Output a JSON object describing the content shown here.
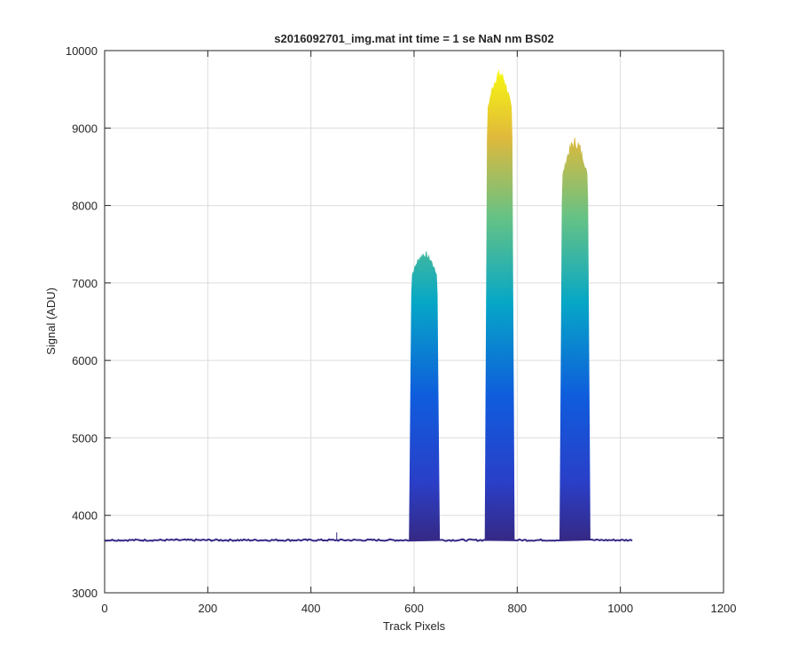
{
  "chart_data": {
    "type": "area",
    "title": "s2016092701_img.mat int time = 1 se  NaN nm BS02",
    "xlabel": "Track Pixels",
    "ylabel": "Signal (ADU)",
    "xlim": [
      0,
      1200
    ],
    "ylim": [
      3000,
      10000
    ],
    "xticks": [
      0,
      200,
      400,
      600,
      800,
      1000,
      1200
    ],
    "xtick_labels": [
      "0",
      "200",
      "400",
      "600",
      "800",
      "1000",
      "1200"
    ],
    "yticks": [
      3000,
      4000,
      5000,
      6000,
      7000,
      8000,
      9000,
      10000
    ],
    "ytick_labels": [
      "3000",
      "4000",
      "5000",
      "6000",
      "7000",
      "8000",
      "9000",
      "10000"
    ],
    "grid": true,
    "colormap": "parula",
    "colors": {
      "baseline": "#352a87",
      "low": "#0f5cdd",
      "mid": "#06a7c6",
      "high": "#66c285",
      "peak": "#f9fb0e"
    },
    "baseline": {
      "x_start": 0,
      "x_end": 1024,
      "value": 3680
    },
    "peaks": [
      {
        "x_start": 590,
        "x_end": 650,
        "top": 7200,
        "max": 7420
      },
      {
        "x_start": 737,
        "x_end": 795,
        "top": 9400,
        "max": 9780
      },
      {
        "x_start": 882,
        "x_end": 942,
        "top": 8500,
        "max": 8900
      }
    ],
    "spike": {
      "x": 450,
      "value": 3780
    }
  }
}
